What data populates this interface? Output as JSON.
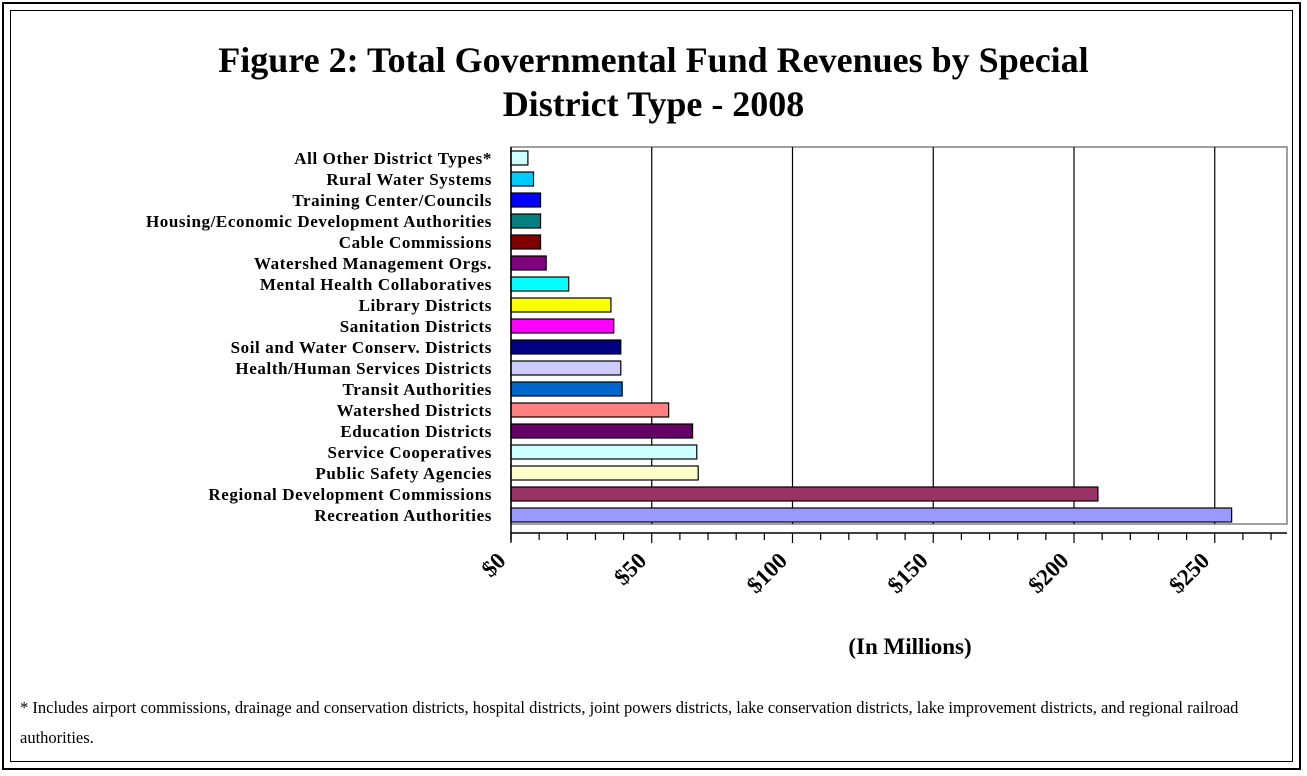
{
  "title": {
    "line1": "Figure 2:  Total Governmental Fund Revenues by Special",
    "line2": "District Type - 2008"
  },
  "chart_data": {
    "type": "bar",
    "orientation": "horizontal",
    "categories": [
      "All Other District Types*",
      "Rural Water Systems",
      "Training Center/Councils",
      "Housing/Economic Development Authorities",
      "Cable Commissions",
      "Watershed Management Orgs.",
      "Mental Health Collaboratives",
      "Library Districts",
      "Sanitation Districts",
      "Soil and Water Conserv. Districts",
      "Health/Human Services Districts",
      "Transit Authorities",
      "Watershed Districts",
      "Education Districts",
      "Service Cooperatives",
      "Public Safety Agencies",
      "Regional Development Commissions",
      "Recreation Authorities"
    ],
    "values": [
      6,
      8,
      10.5,
      10.5,
      10.5,
      12.5,
      20.5,
      35.5,
      36.5,
      39,
      39,
      39.5,
      56,
      64.5,
      66,
      66.5,
      208.5,
      256
    ],
    "colors": [
      "#ccffff",
      "#00ccff",
      "#0000ff",
      "#008080",
      "#800000",
      "#800080",
      "#00ffff",
      "#ffff00",
      "#ff00ff",
      "#000080",
      "#ccccff",
      "#0066cc",
      "#ff8080",
      "#660066",
      "#ccffff",
      "#ffffcc",
      "#993366",
      "#9999ff"
    ],
    "xticks": [
      "$0",
      "$50",
      "$100",
      "$150",
      "$200",
      "$250"
    ],
    "xlim": [
      0,
      270
    ],
    "xlabel": "(In Millions)",
    "grid": true
  },
  "footnote": "* Includes airport commissions, drainage and conservation districts, hospital districts, joint powers districts, lake conservation districts, lake improvement districts, and regional railroad authorities."
}
